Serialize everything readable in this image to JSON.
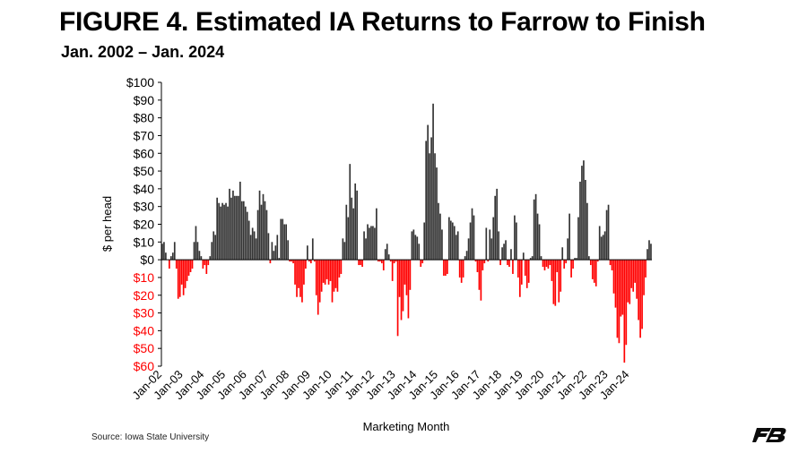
{
  "header": {
    "title": "FIGURE 4. Estimated IA Returns to Farrow to Finish",
    "subtitle": "Jan. 2002 – Jan. 2024"
  },
  "footer": {
    "source": "Source: Iowa State University"
  },
  "colors": {
    "positive": "#333333",
    "negative": "#ff0000",
    "axis": "#000000",
    "logo": "#0b0b0b"
  },
  "logo": {
    "icon": "fb-logo-icon"
  },
  "chart_data": {
    "type": "bar",
    "xlabel": "Marketing Month",
    "ylabel": "$ per head",
    "ylim": [
      -60,
      100
    ],
    "grid": false,
    "yticks": [
      {
        "value": 100,
        "label": "$100"
      },
      {
        "value": 90,
        "label": "$90"
      },
      {
        "value": 80,
        "label": "$80"
      },
      {
        "value": 70,
        "label": "$70"
      },
      {
        "value": 60,
        "label": "$60"
      },
      {
        "value": 50,
        "label": "$50"
      },
      {
        "value": 40,
        "label": "$40"
      },
      {
        "value": 30,
        "label": "$30"
      },
      {
        "value": 20,
        "label": "$20"
      },
      {
        "value": 10,
        "label": "$10"
      },
      {
        "value": 0,
        "label": "$0"
      },
      {
        "value": -10,
        "label": "$10"
      },
      {
        "value": -20,
        "label": "$20"
      },
      {
        "value": -30,
        "label": "$30"
      },
      {
        "value": -40,
        "label": "$40"
      },
      {
        "value": -50,
        "label": "$50"
      },
      {
        "value": -60,
        "label": "$60"
      }
    ],
    "xticks": [
      "Jan-02",
      "Jan-03",
      "Jan-04",
      "Jan-05",
      "Jan-06",
      "Jan-07",
      "Jan-08",
      "Jan-09",
      "Jan-10",
      "Jan-11",
      "Jan-12",
      "Jan-13",
      "Jan-14",
      "Jan-15",
      "Jan-16",
      "Jan-17",
      "Jan-18",
      "Jan-19",
      "Jan-20",
      "Jan-21",
      "Jan-22",
      "Jan-23",
      "Jan-24"
    ],
    "series": [
      {
        "start": "Jan-02",
        "values": [
          9,
          10,
          4,
          0,
          -5,
          2,
          4,
          10,
          -5,
          -22,
          -21,
          -14,
          -20,
          -16,
          -12,
          -9,
          -7,
          -5,
          10,
          19,
          10,
          5,
          2,
          -5,
          -3,
          -8,
          -3,
          2,
          10,
          16,
          14,
          35,
          32,
          30,
          32,
          31,
          32,
          30,
          40,
          35,
          39,
          36,
          36,
          36,
          44,
          33,
          33,
          30,
          27,
          22,
          14,
          18,
          16,
          12,
          28,
          39,
          31,
          37,
          33,
          28,
          15,
          -2,
          10,
          5,
          8,
          14,
          1,
          23,
          23,
          20,
          20,
          11,
          -1,
          -1,
          -2,
          -14,
          -21,
          -16,
          -21,
          -24,
          -14,
          -5,
          8,
          -1,
          -2,
          12,
          -1,
          -20,
          -31,
          -24,
          -18,
          -13,
          -14,
          -11,
          -14,
          -12,
          -24,
          -18,
          -16,
          -18,
          -10,
          -8,
          12,
          10,
          31,
          24,
          54,
          35,
          29,
          43,
          39,
          -3,
          -3,
          -4,
          16,
          12,
          20,
          18,
          19,
          19,
          18,
          29,
          -1,
          -1,
          -2,
          -6,
          6,
          9,
          3,
          -1,
          -12,
          -2,
          -1,
          -43,
          -21,
          -34,
          -29,
          -14,
          -20,
          -33,
          -17,
          16,
          17,
          14,
          13,
          9,
          -4,
          -2,
          21,
          67,
          76,
          60,
          69,
          88,
          60,
          52,
          32,
          26,
          17,
          -9,
          -9,
          -8,
          24,
          22,
          21,
          19,
          14,
          16,
          -10,
          -13,
          -10,
          2,
          5,
          12,
          21,
          29,
          25,
          -1,
          -7,
          -17,
          -23,
          -6,
          -2,
          18,
          -1,
          17,
          12,
          24,
          36,
          40,
          16,
          -3,
          7,
          9,
          11,
          -3,
          -4,
          6,
          -8,
          25,
          21,
          -10,
          -21,
          -14,
          4,
          -9,
          -16,
          -13,
          1,
          2,
          34,
          37,
          26,
          20,
          2,
          -4,
          -6,
          -4,
          -5,
          -3,
          -12,
          -25,
          -26,
          -7,
          -24,
          -18,
          7,
          -5,
          -2,
          12,
          26,
          -10,
          -5,
          1,
          1,
          24,
          44,
          53,
          56,
          45,
          32,
          2,
          -3,
          -11,
          -13,
          -15,
          -1,
          19,
          13,
          14,
          16,
          28,
          31,
          -3,
          -6,
          -19,
          -27,
          -44,
          -47,
          -32,
          -31,
          -58,
          -48,
          -24,
          -25,
          -16,
          -18,
          -13,
          -22,
          -34,
          -44,
          -39,
          -20,
          -10,
          6,
          11,
          9
        ]
      }
    ]
  }
}
